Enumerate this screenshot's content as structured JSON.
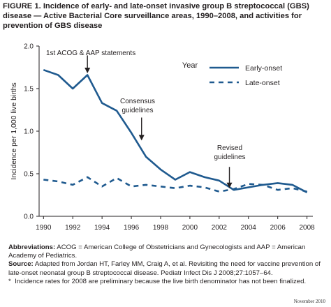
{
  "figure": {
    "label": "FIGURE 1.",
    "title": "Incidence of early- and late-onset invasive group B streptococcal (GBS) disease — Active Bacterial Core surveillance areas, 1990–2008, and activities for prevention of GBS disease"
  },
  "chart_data": {
    "type": "line",
    "xlabel": "Year",
    "ylabel": "Incidence per 1,000 live births",
    "xlim": [
      1989.7,
      2008.4
    ],
    "ylim": [
      0,
      2.0
    ],
    "x_ticks": [
      1990,
      1992,
      1994,
      1996,
      1998,
      2000,
      2002,
      2004,
      2006,
      2008
    ],
    "x_tick_labels": [
      "1990",
      "1992",
      "1994",
      "1996",
      "1998",
      "2000",
      "2002",
      "2004",
      "2006",
      "2008"
    ],
    "y_ticks": [
      0,
      0.5,
      1.0,
      1.5,
      2.0
    ],
    "y_tick_labels": [
      "0.0",
      "0.5",
      "1.0",
      "1.5",
      "2.0"
    ],
    "grid": false,
    "legend_position": "top-right",
    "x": [
      1990,
      1991,
      1992,
      1993,
      1994,
      1995,
      1996,
      1997,
      1998,
      1999,
      2000,
      2001,
      2002,
      2003,
      2004,
      2005,
      2006,
      2007,
      2008
    ],
    "series": [
      {
        "name": "Early-onset",
        "style": "solid",
        "color": "#1f5a8f",
        "values": [
          1.72,
          1.66,
          1.5,
          1.66,
          1.33,
          1.24,
          0.98,
          0.7,
          0.55,
          0.43,
          0.52,
          0.46,
          0.42,
          0.31,
          0.34,
          0.37,
          0.39,
          0.37,
          0.28
        ]
      },
      {
        "name": "Late-onset",
        "style": "dashed",
        "color": "#1f5a8f",
        "values": [
          0.43,
          0.41,
          0.37,
          0.46,
          0.35,
          0.45,
          0.35,
          0.37,
          0.35,
          0.33,
          0.36,
          0.34,
          0.29,
          0.32,
          0.38,
          0.37,
          0.31,
          0.33,
          0.29
        ]
      }
    ],
    "annotations": [
      {
        "lines": [
          "1st ACOG & AAP statements"
        ],
        "x": 1993,
        "arrow_tip_y": 1.68,
        "arrow_tail_y": 1.89
      },
      {
        "lines": [
          "Consensus",
          "guidelines"
        ],
        "x": 1996.7,
        "arrow_tip_y": 0.89,
        "arrow_tail_y": 1.16
      },
      {
        "lines": [
          "Revised",
          "guidelines"
        ],
        "x": 2002.7,
        "arrow_tip_y": 0.33,
        "arrow_tail_y": 0.58
      }
    ]
  },
  "notes": {
    "abbrev_label": "Abbreviations:",
    "abbrev_text": " ACOG = American College of Obstetricians and Gynecologists and AAP = American Academy of Pediatrics.",
    "source_label": "Source:",
    "source_text": " Adapted from Jordan HT, Farley MM, Craig A, et al. Revisiting the need for vaccine prevention of late-onset neonatal group B streptococcal disease. Pediatr Infect Dis J 2008;27:1057–64.",
    "footnote_mark": "*",
    "footnote_text": "Incidence rates for 2008 are preliminary because the live birth denominator has not been finalized."
  },
  "dateline": "November 2010"
}
